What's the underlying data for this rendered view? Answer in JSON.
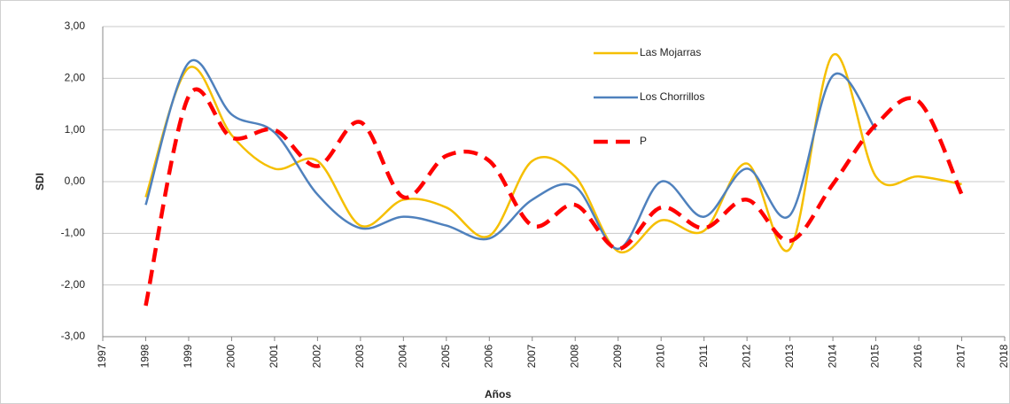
{
  "chart_data": {
    "type": "line",
    "x": [
      1998,
      1999,
      2000,
      2001,
      2002,
      2003,
      2004,
      2005,
      2006,
      2007,
      2008,
      2009,
      2010,
      2011,
      2012,
      2013,
      2014,
      2015,
      2016,
      2017
    ],
    "series": [
      {
        "name": "Las Mojarras",
        "color": "#f5bf00",
        "style": "solid",
        "values": [
          -0.3,
          2.2,
          0.9,
          0.25,
          0.4,
          -0.85,
          -0.35,
          -0.5,
          -1.05,
          0.4,
          0.1,
          -1.35,
          -0.75,
          -0.95,
          0.35,
          -1.3,
          2.45,
          0.1,
          0.1,
          -0.05
        ]
      },
      {
        "name": "Los Chorrillos",
        "color": "#4f81bd",
        "style": "solid",
        "values": [
          -0.45,
          2.3,
          1.3,
          0.95,
          -0.25,
          -0.9,
          -0.68,
          -0.85,
          -1.1,
          -0.35,
          -0.1,
          -1.3,
          0.0,
          -0.68,
          0.25,
          -0.65,
          2.05,
          1.0,
          null,
          null
        ]
      },
      {
        "name": "P",
        "color": "#ff0000",
        "style": "dashed",
        "values": [
          -2.4,
          1.65,
          0.85,
          1.0,
          0.3,
          1.15,
          -0.3,
          0.5,
          0.4,
          -0.85,
          -0.45,
          -1.3,
          -0.5,
          -0.9,
          -0.35,
          -1.15,
          -0.05,
          1.1,
          1.55,
          -0.25
        ]
      }
    ],
    "x_label": "Años",
    "y_label": "SDI",
    "xlim": [
      1997,
      2018
    ],
    "xticks": [
      1997,
      1998,
      1999,
      2000,
      2001,
      2002,
      2003,
      2004,
      2005,
      2006,
      2007,
      2008,
      2009,
      2010,
      2011,
      2012,
      2013,
      2014,
      2015,
      2016,
      2017,
      2018
    ],
    "ylim": [
      -3,
      3
    ],
    "yticks": [
      {
        "value": -3,
        "label": "-3,00"
      },
      {
        "value": -2,
        "label": "-2,00"
      },
      {
        "value": -1,
        "label": "-1,00"
      },
      {
        "value": 0,
        "label": "0,00"
      },
      {
        "value": 1,
        "label": "1,00"
      },
      {
        "value": 2,
        "label": "2,00"
      },
      {
        "value": 3,
        "label": "3,00"
      }
    ],
    "grid": true,
    "smooth": true,
    "legend": "top-right"
  }
}
